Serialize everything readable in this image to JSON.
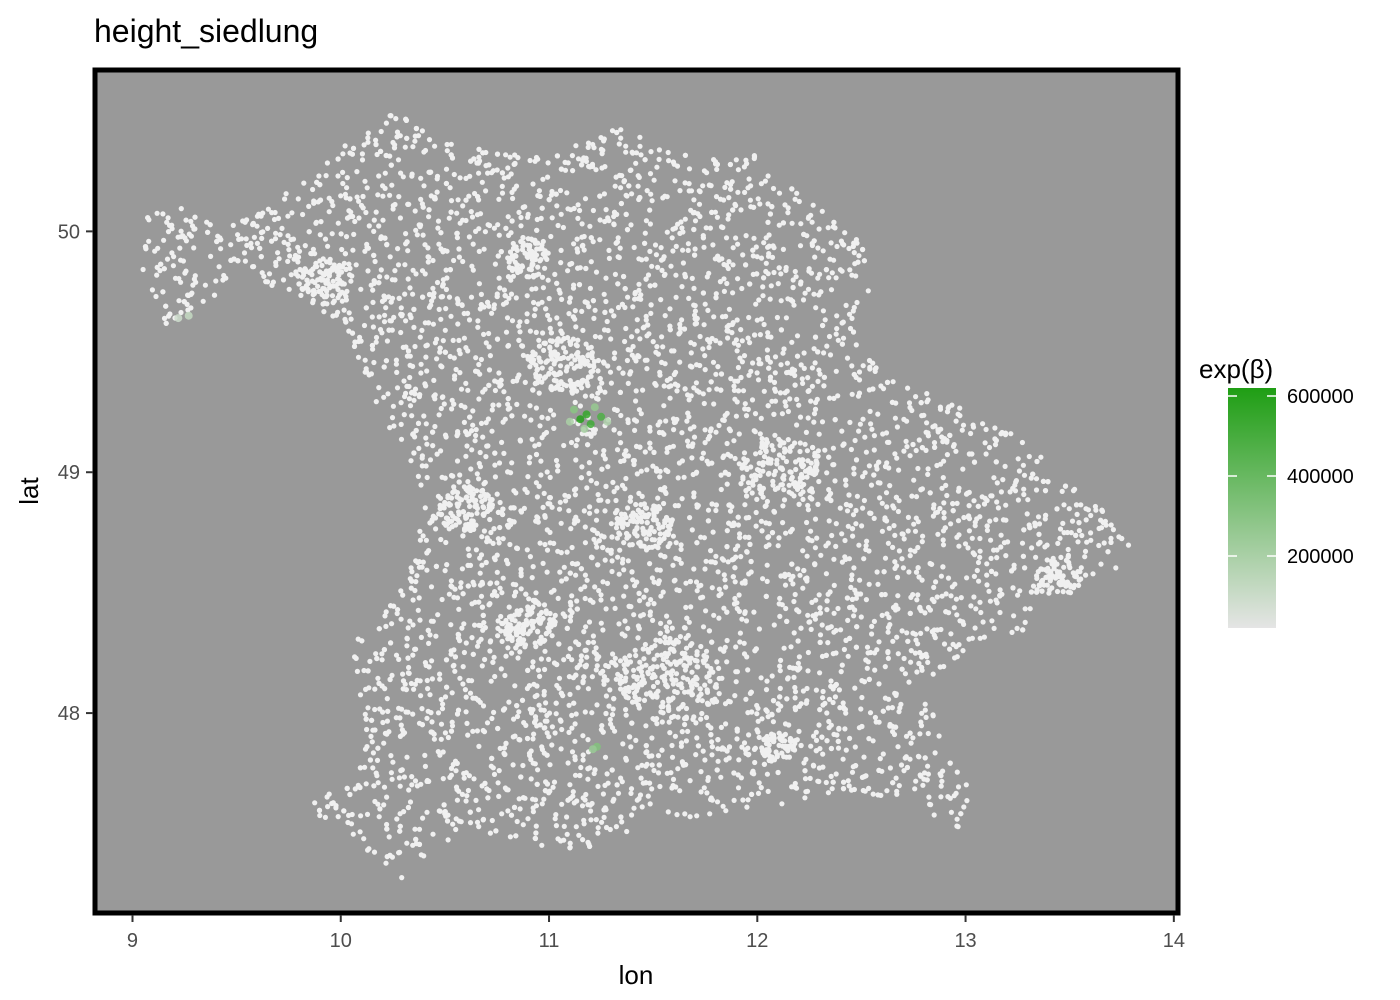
{
  "chart_data": {
    "type": "scatter",
    "title": "height_siedlung",
    "xlabel": "lon",
    "ylabel": "lat",
    "xlim": [
      8.82,
      14.02
    ],
    "ylim": [
      47.17,
      50.67
    ],
    "x_ticks": [
      9,
      10,
      11,
      12,
      13,
      14
    ],
    "y_ticks": [
      48,
      49,
      50
    ],
    "grid": false,
    "panel_background": "#999999",
    "point_base_color": "#f0f0f0",
    "legend": {
      "title": "exp(β)",
      "placement": "right",
      "ticks": [
        200000,
        400000,
        600000
      ],
      "tick_labels": [
        "200000",
        "400000",
        "600000"
      ],
      "range": [
        20000,
        620000
      ],
      "color_low": "#e5e5e5",
      "color_high": "#1f9e14"
    },
    "region_outline_lonlat": [
      [
        9.05,
        50.08
      ],
      [
        9.25,
        50.1
      ],
      [
        9.45,
        50.02
      ],
      [
        9.65,
        50.1
      ],
      [
        9.85,
        50.25
      ],
      [
        10.05,
        50.38
      ],
      [
        10.25,
        50.5
      ],
      [
        10.6,
        50.35
      ],
      [
        11.0,
        50.3
      ],
      [
        11.3,
        50.45
      ],
      [
        11.7,
        50.3
      ],
      [
        12.05,
        50.32
      ],
      [
        12.3,
        50.1
      ],
      [
        12.5,
        49.95
      ],
      [
        12.55,
        49.75
      ],
      [
        12.45,
        49.55
      ],
      [
        12.75,
        49.35
      ],
      [
        13.05,
        49.25
      ],
      [
        13.35,
        49.1
      ],
      [
        13.55,
        48.95
      ],
      [
        13.8,
        48.75
      ],
      [
        13.8,
        48.6
      ],
      [
        13.5,
        48.55
      ],
      [
        13.3,
        48.35
      ],
      [
        13.0,
        48.25
      ],
      [
        12.8,
        48.12
      ],
      [
        12.9,
        47.9
      ],
      [
        13.05,
        47.65
      ],
      [
        12.95,
        47.5
      ],
      [
        12.75,
        47.62
      ],
      [
        12.45,
        47.68
      ],
      [
        12.1,
        47.62
      ],
      [
        11.6,
        47.55
      ],
      [
        11.1,
        47.42
      ],
      [
        10.6,
        47.52
      ],
      [
        10.3,
        47.3
      ],
      [
        10.1,
        47.45
      ],
      [
        9.95,
        47.55
      ],
      [
        9.8,
        47.62
      ],
      [
        10.05,
        47.7
      ],
      [
        10.12,
        47.95
      ],
      [
        10.05,
        48.3
      ],
      [
        10.2,
        48.42
      ],
      [
        10.35,
        48.62
      ],
      [
        10.4,
        48.9
      ],
      [
        10.25,
        49.1
      ],
      [
        10.1,
        49.45
      ],
      [
        10.0,
        49.62
      ],
      [
        9.8,
        49.72
      ],
      [
        9.6,
        49.8
      ],
      [
        9.35,
        49.68
      ],
      [
        9.12,
        49.6
      ],
      [
        9.05,
        49.8
      ]
    ],
    "dense_cities": [
      {
        "lon": 11.58,
        "lat": 48.14,
        "r": 0.18
      },
      {
        "lon": 11.08,
        "lat": 49.45,
        "r": 0.12
      },
      {
        "lon": 10.9,
        "lat": 48.37,
        "r": 0.1
      },
      {
        "lon": 12.1,
        "lat": 49.02,
        "r": 0.14
      },
      {
        "lon": 10.6,
        "lat": 48.85,
        "r": 0.1
      },
      {
        "lon": 11.45,
        "lat": 48.77,
        "r": 0.1
      },
      {
        "lon": 9.93,
        "lat": 49.79,
        "r": 0.1
      },
      {
        "lon": 10.9,
        "lat": 49.89,
        "r": 0.08
      },
      {
        "lon": 12.1,
        "lat": 47.86,
        "r": 0.06
      },
      {
        "lon": 13.45,
        "lat": 48.57,
        "r": 0.08
      }
    ],
    "highlighted_points": [
      {
        "lon": 11.15,
        "lat": 49.22,
        "value": 600000
      },
      {
        "lon": 11.18,
        "lat": 49.24,
        "value": 550000
      },
      {
        "lon": 11.2,
        "lat": 49.2,
        "value": 520000
      },
      {
        "lon": 11.25,
        "lat": 49.23,
        "value": 480000
      },
      {
        "lon": 11.12,
        "lat": 49.26,
        "value": 300000
      },
      {
        "lon": 11.22,
        "lat": 49.27,
        "value": 260000
      },
      {
        "lon": 11.1,
        "lat": 49.21,
        "value": 200000
      },
      {
        "lon": 11.28,
        "lat": 49.21,
        "value": 180000
      },
      {
        "lon": 11.17,
        "lat": 49.18,
        "value": 220000
      },
      {
        "lon": 11.23,
        "lat": 47.86,
        "value": 320000
      },
      {
        "lon": 11.21,
        "lat": 47.85,
        "value": 250000
      },
      {
        "lon": 9.27,
        "lat": 49.65,
        "value": 120000
      },
      {
        "lon": 9.22,
        "lat": 49.64,
        "value": 90000
      }
    ],
    "n_background_points": 5200
  }
}
